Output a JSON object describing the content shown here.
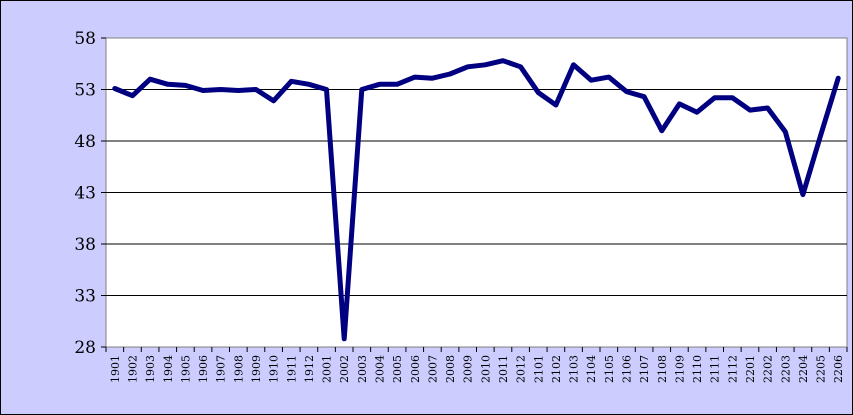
{
  "chart_data": {
    "type": "line",
    "title": "",
    "xlabel": "",
    "ylabel": "",
    "ylim": [
      28,
      58
    ],
    "yticks": [
      "58",
      "53",
      "48",
      "43",
      "38",
      "33",
      "28"
    ],
    "grid": true,
    "legend": "none",
    "line_color": "#000080",
    "plot_background": "#ffffff",
    "figure_background": "#ccccff",
    "categories": [
      "1901",
      "1902",
      "1903",
      "1904",
      "1905",
      "1906",
      "1907",
      "1908",
      "1909",
      "1910",
      "1911",
      "1912",
      "2001",
      "2002",
      "2003",
      "2004",
      "2005",
      "2006",
      "2007",
      "2008",
      "2009",
      "2010",
      "2011",
      "2012",
      "2101",
      "2102",
      "2103",
      "2104",
      "2105",
      "2106",
      "2107",
      "2108",
      "2109",
      "2110",
      "2111",
      "2112",
      "2201",
      "2202",
      "2203",
      "2204",
      "2205",
      "2206"
    ],
    "series": [
      {
        "values": [
          53.1,
          52.4,
          54.0,
          53.5,
          53.4,
          52.9,
          53.0,
          52.9,
          53.0,
          51.9,
          53.8,
          53.5,
          53.0,
          28.8,
          53.0,
          53.5,
          53.5,
          54.2,
          54.1,
          54.5,
          55.2,
          55.4,
          55.8,
          55.2,
          52.7,
          51.5,
          55.4,
          53.9,
          54.2,
          52.8,
          52.3,
          49.0,
          51.6,
          50.8,
          52.2,
          52.2,
          51.0,
          51.2,
          48.9,
          42.8,
          48.5,
          54.1
        ]
      }
    ]
  }
}
